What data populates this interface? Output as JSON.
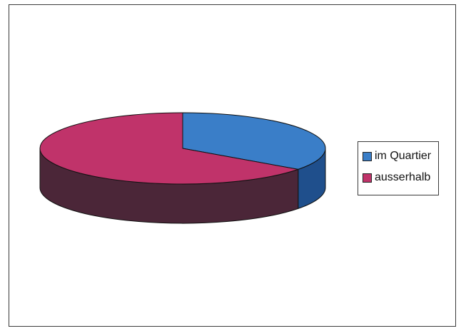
{
  "chart_data": {
    "type": "pie",
    "title": "",
    "three_d": true,
    "legend_position": "right",
    "series": [
      {
        "values": [
          {
            "label": "im Quartier",
            "value": 35,
            "color": "#3a7ec8",
            "side_color": "#1f4f8c"
          },
          {
            "label": "ausserhalb",
            "value": 65,
            "color": "#c0336a",
            "side_color": "#4b2638"
          }
        ]
      }
    ]
  }
}
